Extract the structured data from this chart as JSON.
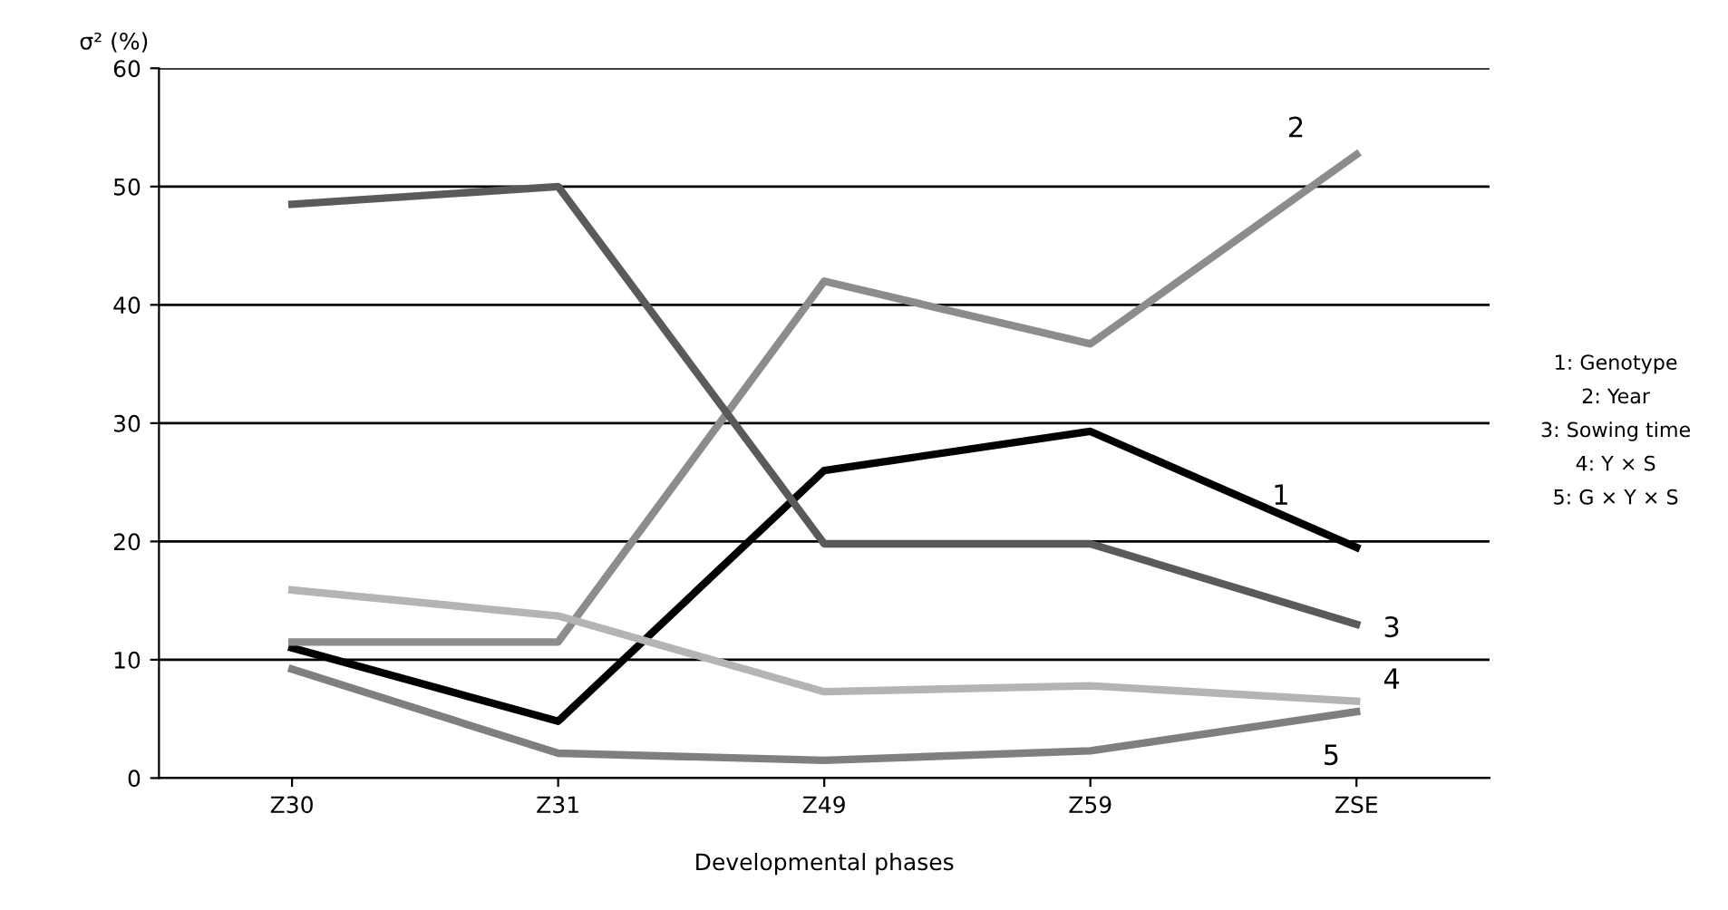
{
  "chart_data": {
    "type": "line",
    "ylabel": "σ² (%)",
    "xlabel": "Developmental phases",
    "categories": [
      "Z30",
      "Z31",
      "Z49",
      "Z59",
      "ZSE"
    ],
    "series": [
      {
        "name": "1",
        "color": "#000000",
        "values": [
          11.0,
          4.8,
          26.0,
          29.3,
          19.5
        ]
      },
      {
        "name": "2",
        "color": "#8c8c8c",
        "values": [
          11.5,
          11.5,
          42.0,
          36.7,
          52.7
        ]
      },
      {
        "name": "3",
        "color": "#5a5a5a",
        "values": [
          48.5,
          50.0,
          19.8,
          19.8,
          13.0
        ]
      },
      {
        "name": "4",
        "color": "#b4b4b4",
        "values": [
          15.9,
          13.7,
          7.3,
          7.8,
          6.5
        ]
      },
      {
        "name": "5",
        "color": "#7f7f7f",
        "values": [
          9.2,
          2.1,
          1.5,
          2.3,
          5.6
        ]
      }
    ],
    "ylim": [
      0,
      60
    ],
    "yticks": [
      0,
      10,
      20,
      30,
      40,
      50,
      60
    ],
    "grid": "y",
    "marker": "none",
    "line_style": "solid",
    "annotations": [
      "1: Genotype",
      "2: Year",
      "3: Sowing time",
      "4: Y × S",
      "5: G × Y × S"
    ]
  }
}
